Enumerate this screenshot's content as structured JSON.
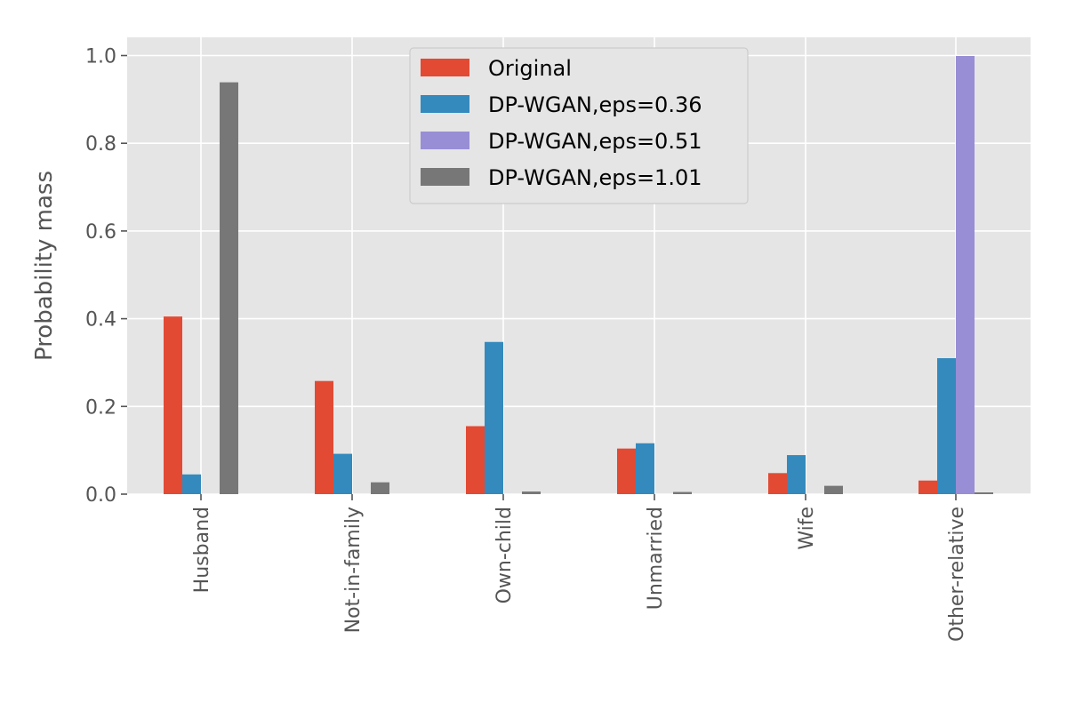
{
  "chart_data": {
    "type": "bar",
    "title": "",
    "xlabel": "",
    "ylabel": "Probability mass",
    "ylim": [
      0,
      1.04
    ],
    "yticks": [
      0.0,
      0.2,
      0.4,
      0.6,
      0.8,
      1.0
    ],
    "ytick_labels": [
      "0.0",
      "0.2",
      "0.4",
      "0.6",
      "0.8",
      "1.0"
    ],
    "grid": true,
    "legend_position": "top-center",
    "categories": [
      "Husband",
      "Not-in-family",
      "Own-child",
      "Unmarried",
      "Wife",
      "Other-relative"
    ],
    "series": [
      {
        "name": "Original",
        "color": "#E24A33",
        "values": [
          0.405,
          0.258,
          0.155,
          0.104,
          0.048,
          0.031
        ]
      },
      {
        "name": "DP-WGAN,eps=0.36",
        "color": "#348ABD",
        "values": [
          0.045,
          0.092,
          0.347,
          0.116,
          0.089,
          0.31
        ]
      },
      {
        "name": "DP-WGAN,eps=0.51",
        "color": "#988ED5",
        "values": [
          0.0,
          0.0,
          0.0,
          0.0,
          0.0,
          0.999
        ]
      },
      {
        "name": "DP-WGAN,eps=1.01",
        "color": "#777777",
        "values": [
          0.939,
          0.027,
          0.006,
          0.005,
          0.019,
          0.004
        ]
      }
    ]
  }
}
